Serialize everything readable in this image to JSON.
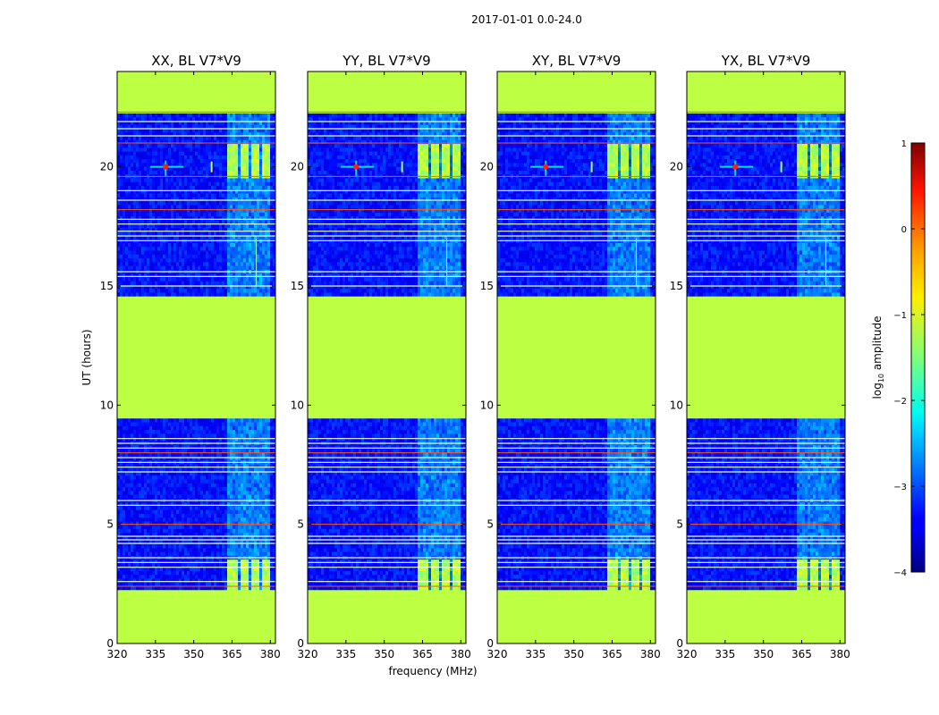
{
  "chart_data": {
    "type": "heatmap",
    "suptitle": "2017-01-01 0.0-24.0",
    "xlabel": "frequency (MHz)",
    "ylabel": "UT (hours)",
    "xlim": [
      320,
      382
    ],
    "ylim": [
      0,
      24
    ],
    "x_ticks": [
      320,
      335,
      350,
      365,
      380
    ],
    "y_ticks": [
      0,
      5,
      10,
      15,
      20
    ],
    "panels": [
      {
        "title": "XX, BL V7*V9"
      },
      {
        "title": "YY, BL V7*V9"
      },
      {
        "title": "XY, BL V7*V9"
      },
      {
        "title": "YX, BL V7*V9"
      }
    ],
    "colorbar": {
      "label_prefix": "log",
      "label_sub": "10",
      "label_suffix": " amplitude",
      "range": [
        -4,
        1
      ],
      "ticks": [
        {
          "value": 1,
          "label": "1"
        },
        {
          "value": 0,
          "label": "0"
        },
        {
          "value": -1,
          "label": "−1"
        },
        {
          "value": -2,
          "label": "−2"
        },
        {
          "value": -3,
          "label": "−3"
        },
        {
          "value": -4,
          "label": "−4"
        }
      ],
      "colormap": "jet"
    },
    "flagged_time_ranges_hours": [
      [
        0.05,
        2.3
      ],
      [
        9.4,
        14.5
      ],
      [
        22.3,
        24.0
      ]
    ],
    "flag_value": -1.2,
    "background_value": -3.3,
    "rfi_time_ranges_hours": [
      [
        2.3,
        3.6
      ],
      [
        19.5,
        20.9
      ]
    ],
    "rfi_channels_mhz": [
      [
        363.5,
        367.5
      ],
      [
        368.5,
        371.5
      ],
      [
        372.5,
        375.5
      ],
      [
        376.5,
        379.5
      ]
    ],
    "narrowband_rfi_mhz": [
      339,
      357
    ]
  }
}
